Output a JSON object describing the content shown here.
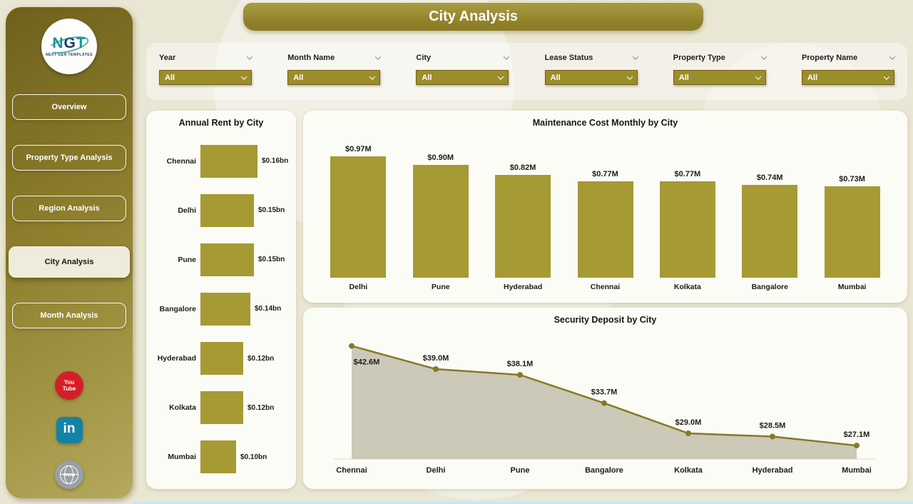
{
  "header": {
    "title": "City Analysis"
  },
  "sidebar": {
    "logo": {
      "letters": [
        {
          "ch": "N",
          "color": "#1b9390"
        },
        {
          "ch": "G",
          "color": "#17395f"
        },
        {
          "ch": "T",
          "color": "#1b9390"
        }
      ],
      "caption": "NEXT GEN TEMPLATES"
    },
    "nav": [
      {
        "label": "Overview",
        "active": false
      },
      {
        "label": "Property Type Analysis",
        "active": false
      },
      {
        "label": "Region Analysis",
        "active": false
      },
      {
        "label": "City Analysis",
        "active": true
      },
      {
        "label": "Month Analysis",
        "active": false
      }
    ],
    "social": [
      {
        "name": "youtube",
        "label": "You Tube",
        "color": "#d51f27"
      },
      {
        "name": "linkedin",
        "label": "in",
        "color": "#1482a6"
      },
      {
        "name": "website",
        "label": "www",
        "color": "#9aa0a6"
      }
    ]
  },
  "filters": [
    {
      "label": "Year",
      "value": "All"
    },
    {
      "label": "Month Name",
      "value": "All"
    },
    {
      "label": "City",
      "value": "All"
    },
    {
      "label": "Lease Status",
      "value": "All"
    },
    {
      "label": "Property Type",
      "value": "All"
    },
    {
      "label": "Property Name",
      "value": "All"
    }
  ],
  "chart_data": [
    {
      "type": "bar",
      "orientation": "horizontal",
      "title": "Annual Rent by City",
      "categories": [
        "Chennai",
        "Delhi",
        "Pune",
        "Bangalore",
        "Hyderabad",
        "Kolkata",
        "Mumbai"
      ],
      "values": [
        0.16,
        0.15,
        0.15,
        0.14,
        0.12,
        0.12,
        0.1
      ],
      "labels": [
        "$0.16bn",
        "$0.15bn",
        "$0.15bn",
        "$0.14bn",
        "$0.12bn",
        "$0.12bn",
        "$0.10bn"
      ],
      "xlabel": "",
      "ylabel": "",
      "legend": false,
      "grid": false
    },
    {
      "type": "bar",
      "orientation": "vertical",
      "title": "Maintenance Cost Monthly by City",
      "categories": [
        "Delhi",
        "Pune",
        "Hyderabad",
        "Chennai",
        "Kolkata",
        "Bangalore",
        "Mumbai"
      ],
      "values": [
        0.97,
        0.9,
        0.82,
        0.77,
        0.77,
        0.74,
        0.73
      ],
      "labels": [
        "$0.97M",
        "$0.90M",
        "$0.82M",
        "$0.77M",
        "$0.77M",
        "$0.74M",
        "$0.73M"
      ],
      "xlabel": "",
      "ylabel": "",
      "legend": false,
      "grid": false
    },
    {
      "type": "area",
      "title": "Security Deposit by City",
      "categories": [
        "Chennai",
        "Delhi",
        "Pune",
        "Bangalore",
        "Kolkata",
        "Hyderabad",
        "Mumbai"
      ],
      "values": [
        42.6,
        39.0,
        38.1,
        33.7,
        29.0,
        28.5,
        27.1
      ],
      "labels": [
        "$42.6M",
        "$39.0M",
        "$38.1M",
        "$33.7M",
        "$29.0M",
        "$28.5M",
        "$27.1M"
      ],
      "xlabel": "",
      "ylabel": "",
      "legend": false,
      "grid": false
    }
  ],
  "colors": {
    "accent": "#a59a33",
    "line": "#857a26",
    "area_fill": "#c6c3b3",
    "banner": "#8c7d26",
    "dropdown": "#9c8d2b"
  }
}
